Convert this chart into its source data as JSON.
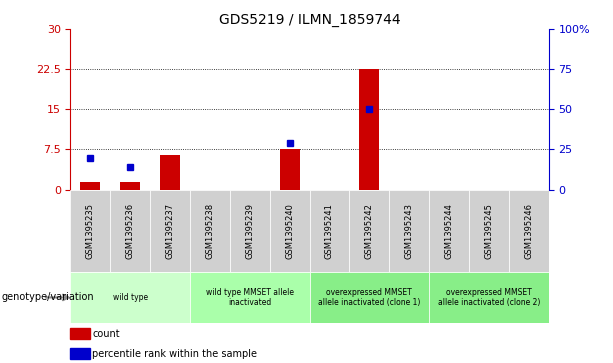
{
  "title": "GDS5219 / ILMN_1859744",
  "samples": [
    "GSM1395235",
    "GSM1395236",
    "GSM1395237",
    "GSM1395238",
    "GSM1395239",
    "GSM1395240",
    "GSM1395241",
    "GSM1395242",
    "GSM1395243",
    "GSM1395244",
    "GSM1395245",
    "GSM1395246"
  ],
  "count_values": [
    1.5,
    1.5,
    6.5,
    0,
    0,
    7.5,
    0,
    22.5,
    0,
    0,
    0,
    0
  ],
  "percentile_values": [
    20,
    14,
    0,
    0,
    0,
    29,
    0,
    50,
    0,
    0,
    0,
    0
  ],
  "left_ylim": [
    0,
    30
  ],
  "right_ylim": [
    0,
    100
  ],
  "left_yticks": [
    0,
    7.5,
    15,
    22.5,
    30
  ],
  "left_yticklabels": [
    "0",
    "7.5",
    "15",
    "22.5",
    "30"
  ],
  "right_yticks": [
    0,
    25,
    50,
    75,
    100
  ],
  "right_yticklabels": [
    "0",
    "25",
    "50",
    "75",
    "100%"
  ],
  "bar_color": "#cc0000",
  "dot_color": "#0000cc",
  "groups": [
    {
      "label": "wild type",
      "start": 0,
      "end": 3,
      "color": "#ccffcc"
    },
    {
      "label": "wild type MMSET allele\ninactivated",
      "start": 3,
      "end": 6,
      "color": "#aaffaa"
    },
    {
      "label": "overexpressed MMSET\nallele inactivated (clone 1)",
      "start": 6,
      "end": 9,
      "color": "#88ee88"
    },
    {
      "label": "overexpressed MMSET\nallele inactivated (clone 2)",
      "start": 9,
      "end": 12,
      "color": "#88ee88"
    }
  ],
  "genotype_label": "genotype/variation",
  "legend_items": [
    {
      "label": "count",
      "color": "#cc0000"
    },
    {
      "label": "percentile rank within the sample",
      "color": "#0000cc"
    }
  ],
  "sample_cell_color": "#d0d0d0",
  "bar_width": 0.5
}
